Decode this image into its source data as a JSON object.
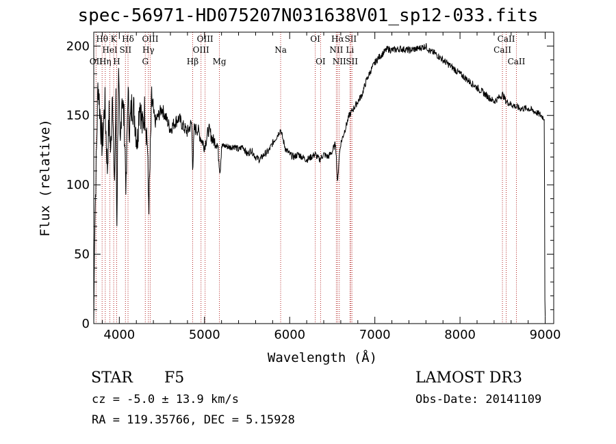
{
  "header": {
    "title": "spec-56971-HD075207N031638V01_sp12-033.fits"
  },
  "info": {
    "object_class": "STAR",
    "subclass": "F5",
    "survey": "LAMOST DR3",
    "cz": "cz = -5.0 ± 13.9 km/s",
    "obs_date": "Obs-Date: 20141109",
    "radec": "RA = 119.35766, DEC =   5.15928"
  },
  "colors": {
    "spectrum": "#000000",
    "line_marker": "#b22222",
    "axis": "#000000"
  },
  "chart_data": {
    "type": "line",
    "xlabel": "Wavelength (Å)",
    "ylabel": "Flux (relative)",
    "xlim": [
      3700,
      9100
    ],
    "ylim": [
      0,
      210
    ],
    "xticks": [
      4000,
      5000,
      6000,
      7000,
      8000,
      9000
    ],
    "yticks": [
      0,
      50,
      100,
      150,
      200
    ],
    "series": [
      {
        "name": "flux",
        "x": [
          3700,
          3710,
          3730,
          3750,
          3780,
          3800,
          3830,
          3860,
          3880,
          3900,
          3920,
          3940,
          3960,
          3970,
          3990,
          4010,
          4030,
          4060,
          4080,
          4100,
          4120,
          4150,
          4180,
          4210,
          4240,
          4270,
          4300,
          4330,
          4340,
          4350,
          4380,
          4420,
          4460,
          4500,
          4550,
          4600,
          4650,
          4700,
          4750,
          4800,
          4850,
          4861,
          4880,
          4920,
          4960,
          5000,
          5050,
          5100,
          5150,
          5170,
          5183,
          5200,
          5250,
          5300,
          5350,
          5400,
          5450,
          5500,
          5550,
          5600,
          5650,
          5700,
          5750,
          5800,
          5850,
          5893,
          5920,
          5950,
          6000,
          6050,
          6100,
          6150,
          6200,
          6250,
          6300,
          6350,
          6400,
          6450,
          6500,
          6540,
          6563,
          6580,
          6600,
          6650,
          6700,
          6750,
          6800,
          6850,
          6900,
          6950,
          7000,
          7050,
          7100,
          7150,
          7200,
          7300,
          7400,
          7500,
          7600,
          7650,
          7700,
          7800,
          7900,
          8000,
          8100,
          8200,
          8300,
          8400,
          8500,
          8542,
          8600,
          8700,
          8800,
          8900,
          8950,
          8990,
          8995,
          9000
        ],
        "y": [
          0,
          68,
          118,
          175,
          145,
          128,
          160,
          112,
          150,
          120,
          175,
          95,
          160,
          65,
          183,
          120,
          168,
          142,
          95,
          168,
          140,
          160,
          150,
          130,
          163,
          140,
          155,
          130,
          95,
          88,
          160,
          145,
          150,
          155,
          148,
          140,
          145,
          148,
          142,
          138,
          145,
          112,
          140,
          140,
          133,
          128,
          140,
          132,
          130,
          118,
          110,
          128,
          128,
          127,
          128,
          125,
          128,
          122,
          125,
          120,
          118,
          122,
          124,
          130,
          135,
          140,
          133,
          126,
          122,
          120,
          122,
          120,
          118,
          120,
          122,
          118,
          122,
          120,
          124,
          130,
          100,
          120,
          130,
          140,
          150,
          155,
          160,
          165,
          175,
          182,
          188,
          192,
          195,
          198,
          197,
          198,
          197,
          198,
          200,
          196,
          195,
          190,
          185,
          180,
          175,
          170,
          165,
          160,
          165,
          160,
          158,
          155,
          155,
          152,
          150,
          148,
          20,
          5
        ]
      }
    ],
    "line_markers": [
      {
        "name": "OII",
        "x": 3727,
        "row": 2
      },
      {
        "name": "Hθ",
        "x": 3798,
        "row": 0
      },
      {
        "name": "Hη",
        "x": 3835,
        "row": 2
      },
      {
        "name": "HeI",
        "x": 3889,
        "row": 1
      },
      {
        "name": "K",
        "x": 3934,
        "row": 0
      },
      {
        "name": "H",
        "x": 3969,
        "row": 2
      },
      {
        "name": "SII",
        "x": 4072,
        "row": 1
      },
      {
        "name": "Hδ",
        "x": 4102,
        "row": 0
      },
      {
        "name": "G",
        "x": 4305,
        "row": 2
      },
      {
        "name": "Hγ",
        "x": 4341,
        "row": 1
      },
      {
        "name": "OIII",
        "x": 4363,
        "row": 0
      },
      {
        "name": "Hβ",
        "x": 4861,
        "row": 2
      },
      {
        "name": "OIII",
        "x": 4959,
        "row": 1
      },
      {
        "name": "OIII",
        "x": 5007,
        "row": 0
      },
      {
        "name": "Mg",
        "x": 5175,
        "row": 2
      },
      {
        "name": "Na",
        "x": 5894,
        "row": 1
      },
      {
        "name": "OI",
        "x": 6300,
        "row": 0
      },
      {
        "name": "OI",
        "x": 6363,
        "row": 2
      },
      {
        "name": "NII",
        "x": 6548,
        "row": 1
      },
      {
        "name": "Hα",
        "x": 6563,
        "row": 0
      },
      {
        "name": "NII",
        "x": 6583,
        "row": 2
      },
      {
        "name": "Li",
        "x": 6708,
        "row": 1
      },
      {
        "name": "SII",
        "x": 6716,
        "row": 0
      },
      {
        "name": "SII",
        "x": 6731,
        "row": 2
      },
      {
        "name": "CaII",
        "x": 8498,
        "row": 1
      },
      {
        "name": "CaII",
        "x": 8542,
        "row": 0
      },
      {
        "name": "CaII",
        "x": 8662,
        "row": 2
      }
    ]
  }
}
